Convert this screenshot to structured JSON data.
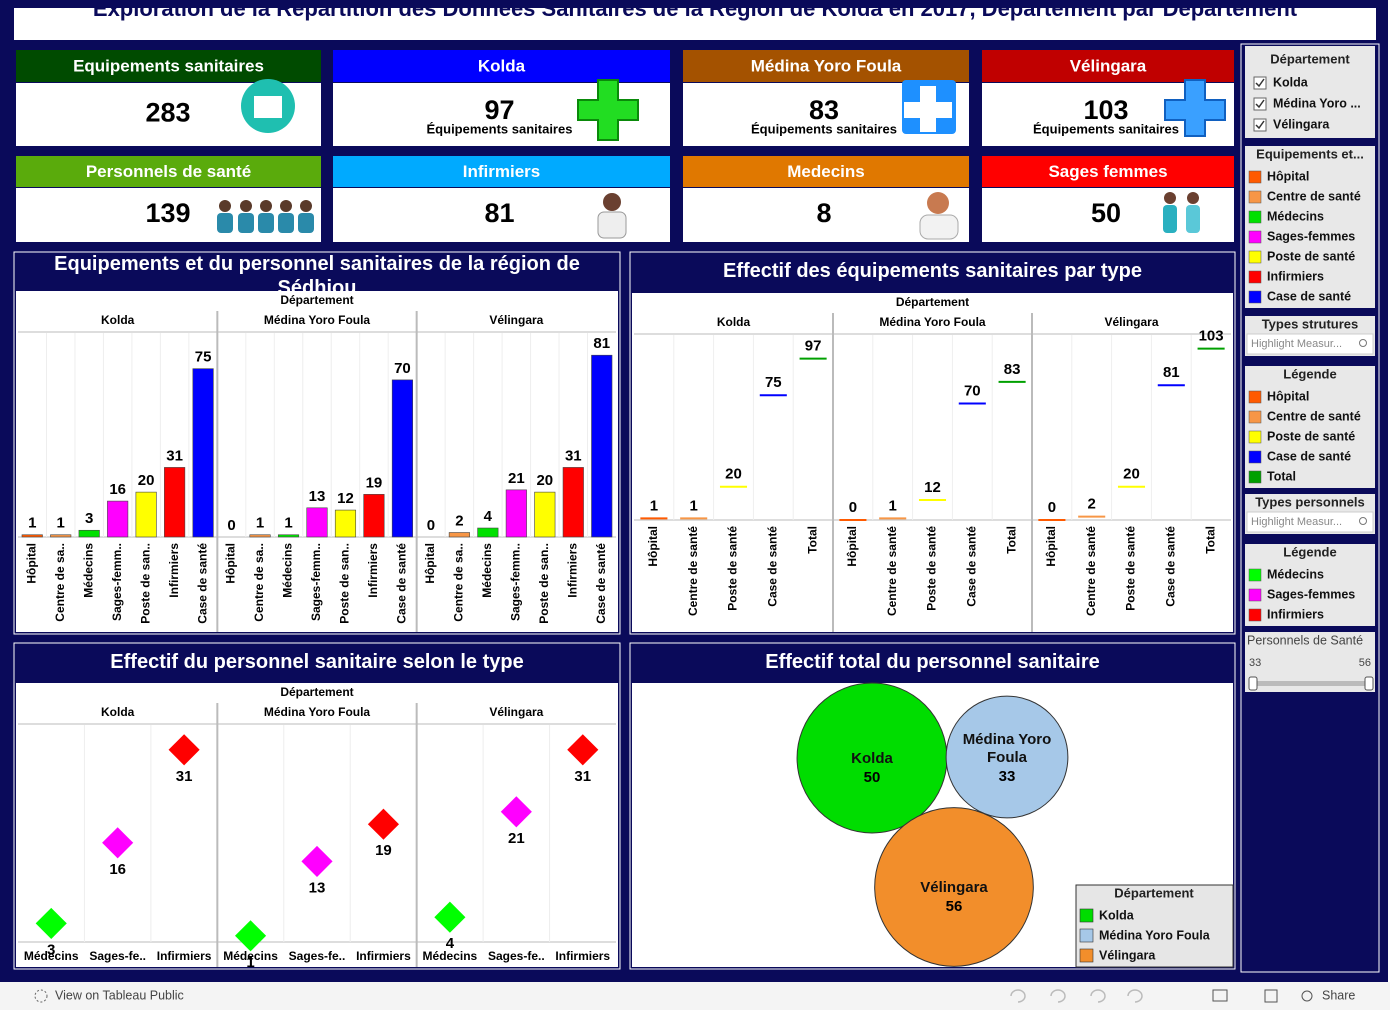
{
  "header": {
    "title": "Exploration de la Répartition des Données Sanitaires de la Région de Kolda en 2017, Département par Département"
  },
  "kpis": [
    {
      "label": "Equipements sanitaires",
      "value": 283,
      "color": "#004b00"
    },
    {
      "label": "Kolda",
      "value": 97,
      "caption": "Équipements sanitaires",
      "color": "#0000ff"
    },
    {
      "label": "Médina Yoro Foula",
      "value": 83,
      "caption": "Équipements sanitaires",
      "color": "#a45200"
    },
    {
      "label": "Vélingara",
      "value": 103,
      "caption": "Équipements sanitaires",
      "color": "#c00000"
    },
    {
      "label": "Personnels de santé",
      "value": 139,
      "color": "#5aab0c"
    },
    {
      "label": "Infirmiers",
      "value": 81,
      "color": "#00aaff"
    },
    {
      "label": "Medecins",
      "value": 8,
      "color": "#e07800"
    },
    {
      "label": "Sages femmes",
      "value": 50,
      "color": "#ff0000"
    }
  ],
  "chart_data": [
    {
      "type": "bar",
      "title": "Equipements et du personnel sanitaires de la région de Sédhiou",
      "facet_title": "Département",
      "categories": [
        "Hôpital",
        "Centre de sa..",
        "Médecins",
        "Sages-femm..",
        "Poste de san..",
        "Infirmiers",
        "Case de santé"
      ],
      "colors": [
        "#ff5a00",
        "#f79646",
        "#00e000",
        "#ff00ff",
        "#ffff00",
        "#ff0000",
        "#0000ff"
      ],
      "series": [
        {
          "name": "Kolda",
          "values": [
            1,
            1,
            3,
            16,
            20,
            31,
            75
          ]
        },
        {
          "name": "Médina Yoro Foula",
          "values": [
            0,
            1,
            1,
            13,
            12,
            19,
            70
          ]
        },
        {
          "name": "Vélingara",
          "values": [
            0,
            2,
            4,
            21,
            20,
            31,
            81
          ]
        }
      ],
      "ylim": [
        0,
        90
      ]
    },
    {
      "type": "tick",
      "title": "Effectif des équipements sanitaires par type",
      "facet_title": "Département",
      "categories": [
        "Hôpital",
        "Centre de santé",
        "Poste de santé",
        "Case de santé",
        "Total"
      ],
      "colors": [
        "#ff5a00",
        "#f79646",
        "#ffff00",
        "#0000ff",
        "#00a000"
      ],
      "series": [
        {
          "name": "Kolda",
          "values": [
            1,
            1,
            20,
            75,
            97
          ]
        },
        {
          "name": "Médina Yoro Foula",
          "values": [
            0,
            1,
            12,
            70,
            83
          ]
        },
        {
          "name": "Vélingara",
          "values": [
            0,
            2,
            20,
            81,
            103
          ]
        }
      ],
      "ylim": [
        0,
        110
      ]
    },
    {
      "type": "diamond",
      "title": "Effectif du personnel sanitaire selon le type",
      "facet_title": "Département",
      "categories": [
        "Médecins",
        "Sages-fe..",
        "Infirmiers"
      ],
      "colors": [
        "#00ff00",
        "#ff00ff",
        "#ff0000"
      ],
      "series": [
        {
          "name": "Kolda",
          "values": [
            3,
            16,
            31
          ]
        },
        {
          "name": "Médina Yoro Foula",
          "values": [
            1,
            13,
            19
          ]
        },
        {
          "name": "Vélingara",
          "values": [
            4,
            21,
            31
          ]
        }
      ],
      "ylim": [
        0,
        35
      ]
    },
    {
      "type": "bubble",
      "title": "Effectif total du personnel sanitaire",
      "legend_title": "Département",
      "categories": [
        "Kolda",
        "Médina Yoro Foula",
        "Vélingara"
      ],
      "values": [
        50,
        33,
        56
      ],
      "colors": [
        "#00dd00",
        "#a6c8e8",
        "#f28e2b"
      ]
    }
  ],
  "sidebar": {
    "filter": {
      "title": "Département",
      "items": [
        "Kolda",
        "Médina Yoro ...",
        "Vélingara"
      ]
    },
    "legend1": {
      "title": "Equipements et...",
      "items": [
        {
          "label": "Hôpital",
          "color": "#ff5a00"
        },
        {
          "label": "Centre de santé",
          "color": "#f79646"
        },
        {
          "label": "Médecins",
          "color": "#00e000"
        },
        {
          "label": "Sages-femmes",
          "color": "#ff00ff"
        },
        {
          "label": "Poste de santé",
          "color": "#ffff00"
        },
        {
          "label": "Infirmiers",
          "color": "#ff0000"
        },
        {
          "label": "Case de santé",
          "color": "#0000ff"
        }
      ]
    },
    "types_structures": {
      "title": "Types strutures",
      "placeholder": "Highlight Measur..."
    },
    "legend2": {
      "title": "Légende",
      "items": [
        {
          "label": "Hôpital",
          "color": "#ff5a00"
        },
        {
          "label": "Centre de santé",
          "color": "#f79646"
        },
        {
          "label": "Poste de santé",
          "color": "#ffff00"
        },
        {
          "label": "Case de santé",
          "color": "#0000ff"
        },
        {
          "label": "Total",
          "color": "#00a000"
        }
      ]
    },
    "types_personnels": {
      "title": "Types personnels",
      "placeholder": "Highlight Measur..."
    },
    "legend3": {
      "title": "Légende",
      "items": [
        {
          "label": "Médecins",
          "color": "#00ff00"
        },
        {
          "label": "Sages-femmes",
          "color": "#ff00ff"
        },
        {
          "label": "Infirmiers",
          "color": "#ff0000"
        }
      ]
    },
    "slider": {
      "title": "Personnels de Santé",
      "min": 33,
      "max": 56
    }
  },
  "footer": {
    "link": "View on Tableau Public",
    "share": "Share"
  }
}
